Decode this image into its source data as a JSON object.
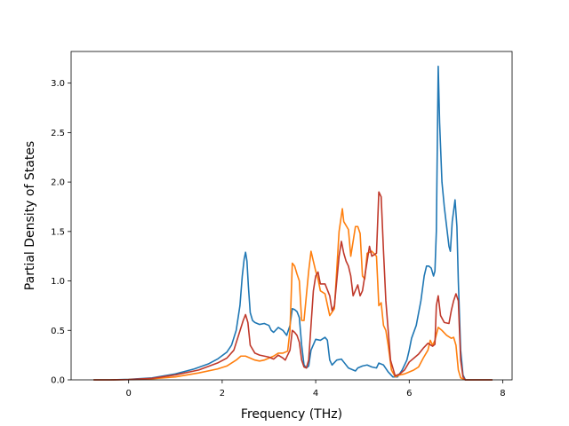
{
  "chart_data": {
    "type": "line",
    "title": "",
    "xlabel": "Frequency (THz)",
    "ylabel": "Partial Density of States",
    "xlim": [
      -1.23,
      8.2
    ],
    "ylim": [
      0,
      3.32
    ],
    "xticks": [
      0,
      2,
      4,
      6,
      8
    ],
    "yticks": [
      0.0,
      0.5,
      1.0,
      1.5,
      2.0,
      2.5,
      3.0
    ],
    "xtick_labels": [
      "0",
      "2",
      "4",
      "6",
      "8"
    ],
    "ytick_labels": [
      "0.0",
      "0.5",
      "1.0",
      "1.5",
      "2.0",
      "2.5",
      "3.0"
    ],
    "grid": false,
    "legend": "none",
    "series": [
      {
        "color": "#1f77b4",
        "points": [
          [
            -0.75,
            0
          ],
          [
            -0.4,
            0
          ],
          [
            0,
            0.005
          ],
          [
            0.5,
            0.02
          ],
          [
            1.0,
            0.06
          ],
          [
            1.4,
            0.11
          ],
          [
            1.7,
            0.16
          ],
          [
            1.9,
            0.21
          ],
          [
            2.1,
            0.28
          ],
          [
            2.2,
            0.35
          ],
          [
            2.3,
            0.5
          ],
          [
            2.38,
            0.75
          ],
          [
            2.43,
            1.05
          ],
          [
            2.47,
            1.22
          ],
          [
            2.5,
            1.29
          ],
          [
            2.53,
            1.2
          ],
          [
            2.56,
            0.95
          ],
          [
            2.6,
            0.68
          ],
          [
            2.65,
            0.6
          ],
          [
            2.7,
            0.58
          ],
          [
            2.8,
            0.56
          ],
          [
            2.9,
            0.57
          ],
          [
            3.0,
            0.55
          ],
          [
            3.05,
            0.5
          ],
          [
            3.1,
            0.48
          ],
          [
            3.2,
            0.53
          ],
          [
            3.3,
            0.5
          ],
          [
            3.38,
            0.45
          ],
          [
            3.45,
            0.55
          ],
          [
            3.5,
            0.72
          ],
          [
            3.55,
            0.71
          ],
          [
            3.6,
            0.69
          ],
          [
            3.65,
            0.63
          ],
          [
            3.7,
            0.35
          ],
          [
            3.75,
            0.15
          ],
          [
            3.8,
            0.12
          ],
          [
            3.85,
            0.14
          ],
          [
            3.9,
            0.3
          ],
          [
            4.0,
            0.41
          ],
          [
            4.1,
            0.4
          ],
          [
            4.2,
            0.43
          ],
          [
            4.25,
            0.4
          ],
          [
            4.3,
            0.2
          ],
          [
            4.35,
            0.15
          ],
          [
            4.45,
            0.2
          ],
          [
            4.55,
            0.21
          ],
          [
            4.6,
            0.18
          ],
          [
            4.7,
            0.12
          ],
          [
            4.8,
            0.1
          ],
          [
            4.85,
            0.09
          ],
          [
            4.9,
            0.12
          ],
          [
            5.0,
            0.14
          ],
          [
            5.1,
            0.15
          ],
          [
            5.2,
            0.13
          ],
          [
            5.3,
            0.12
          ],
          [
            5.35,
            0.17
          ],
          [
            5.45,
            0.15
          ],
          [
            5.55,
            0.08
          ],
          [
            5.65,
            0.03
          ],
          [
            5.75,
            0.03
          ],
          [
            5.85,
            0.1
          ],
          [
            5.95,
            0.2
          ],
          [
            6.0,
            0.3
          ],
          [
            6.05,
            0.42
          ],
          [
            6.15,
            0.55
          ],
          [
            6.25,
            0.8
          ],
          [
            6.32,
            1.05
          ],
          [
            6.37,
            1.15
          ],
          [
            6.42,
            1.15
          ],
          [
            6.47,
            1.13
          ],
          [
            6.52,
            1.05
          ],
          [
            6.55,
            1.1
          ],
          [
            6.58,
            1.5
          ],
          [
            6.62,
            3.17
          ],
          [
            6.65,
            2.6
          ],
          [
            6.7,
            2.0
          ],
          [
            6.75,
            1.75
          ],
          [
            6.8,
            1.55
          ],
          [
            6.85,
            1.35
          ],
          [
            6.88,
            1.3
          ],
          [
            6.92,
            1.6
          ],
          [
            6.98,
            1.82
          ],
          [
            7.02,
            1.55
          ],
          [
            7.05,
            1.0
          ],
          [
            7.1,
            0.3
          ],
          [
            7.15,
            0.05
          ],
          [
            7.2,
            0
          ],
          [
            7.5,
            0
          ],
          [
            7.78,
            0
          ]
        ]
      },
      {
        "color": "#ff7f0e",
        "points": [
          [
            -0.75,
            0
          ],
          [
            -0.4,
            0
          ],
          [
            0,
            0.003
          ],
          [
            0.5,
            0.01
          ],
          [
            1.0,
            0.03
          ],
          [
            1.5,
            0.07
          ],
          [
            1.9,
            0.11
          ],
          [
            2.1,
            0.14
          ],
          [
            2.3,
            0.2
          ],
          [
            2.4,
            0.24
          ],
          [
            2.5,
            0.24
          ],
          [
            2.6,
            0.22
          ],
          [
            2.7,
            0.2
          ],
          [
            2.8,
            0.19
          ],
          [
            2.9,
            0.2
          ],
          [
            3.0,
            0.22
          ],
          [
            3.1,
            0.24
          ],
          [
            3.2,
            0.27
          ],
          [
            3.3,
            0.27
          ],
          [
            3.4,
            0.29
          ],
          [
            3.45,
            0.5
          ],
          [
            3.5,
            1.18
          ],
          [
            3.55,
            1.15
          ],
          [
            3.6,
            1.07
          ],
          [
            3.65,
            1.0
          ],
          [
            3.7,
            0.6
          ],
          [
            3.75,
            0.6
          ],
          [
            3.85,
            1.1
          ],
          [
            3.9,
            1.3
          ],
          [
            3.95,
            1.2
          ],
          [
            4.0,
            1.1
          ],
          [
            4.05,
            1.02
          ],
          [
            4.1,
            0.9
          ],
          [
            4.2,
            0.87
          ],
          [
            4.3,
            0.65
          ],
          [
            4.4,
            0.72
          ],
          [
            4.5,
            1.5
          ],
          [
            4.57,
            1.73
          ],
          [
            4.6,
            1.6
          ],
          [
            4.7,
            1.52
          ],
          [
            4.75,
            1.25
          ],
          [
            4.85,
            1.55
          ],
          [
            4.9,
            1.55
          ],
          [
            4.95,
            1.48
          ],
          [
            5.0,
            1.05
          ],
          [
            5.05,
            1.02
          ],
          [
            5.1,
            1.28
          ],
          [
            5.2,
            1.3
          ],
          [
            5.3,
            1.25
          ],
          [
            5.35,
            0.75
          ],
          [
            5.4,
            0.78
          ],
          [
            5.45,
            0.55
          ],
          [
            5.5,
            0.5
          ],
          [
            5.55,
            0.35
          ],
          [
            5.62,
            0.1
          ],
          [
            5.7,
            0.03
          ],
          [
            5.8,
            0.05
          ],
          [
            5.9,
            0.06
          ],
          [
            6.0,
            0.08
          ],
          [
            6.1,
            0.1
          ],
          [
            6.2,
            0.13
          ],
          [
            6.3,
            0.22
          ],
          [
            6.4,
            0.3
          ],
          [
            6.45,
            0.4
          ],
          [
            6.5,
            0.35
          ],
          [
            6.55,
            0.4
          ],
          [
            6.62,
            0.53
          ],
          [
            6.7,
            0.5
          ],
          [
            6.8,
            0.45
          ],
          [
            6.9,
            0.42
          ],
          [
            6.95,
            0.43
          ],
          [
            7.0,
            0.35
          ],
          [
            7.05,
            0.1
          ],
          [
            7.1,
            0.02
          ],
          [
            7.2,
            0
          ],
          [
            7.78,
            0
          ]
        ]
      },
      {
        "color": "#c0392b",
        "points": [
          [
            -0.75,
            0
          ],
          [
            -0.4,
            0
          ],
          [
            0,
            0.003
          ],
          [
            0.5,
            0.015
          ],
          [
            1.0,
            0.05
          ],
          [
            1.5,
            0.1
          ],
          [
            1.9,
            0.17
          ],
          [
            2.1,
            0.22
          ],
          [
            2.25,
            0.3
          ],
          [
            2.35,
            0.45
          ],
          [
            2.45,
            0.6
          ],
          [
            2.5,
            0.66
          ],
          [
            2.55,
            0.58
          ],
          [
            2.6,
            0.35
          ],
          [
            2.7,
            0.27
          ],
          [
            2.8,
            0.25
          ],
          [
            2.9,
            0.24
          ],
          [
            3.0,
            0.23
          ],
          [
            3.1,
            0.21
          ],
          [
            3.2,
            0.25
          ],
          [
            3.3,
            0.22
          ],
          [
            3.35,
            0.2
          ],
          [
            3.45,
            0.3
          ],
          [
            3.5,
            0.5
          ],
          [
            3.55,
            0.48
          ],
          [
            3.6,
            0.45
          ],
          [
            3.65,
            0.38
          ],
          [
            3.7,
            0.2
          ],
          [
            3.75,
            0.13
          ],
          [
            3.8,
            0.12
          ],
          [
            3.85,
            0.2
          ],
          [
            3.95,
            0.9
          ],
          [
            4.0,
            1.05
          ],
          [
            4.05,
            1.09
          ],
          [
            4.1,
            0.97
          ],
          [
            4.2,
            0.97
          ],
          [
            4.3,
            0.85
          ],
          [
            4.35,
            0.7
          ],
          [
            4.4,
            0.75
          ],
          [
            4.5,
            1.25
          ],
          [
            4.55,
            1.4
          ],
          [
            4.6,
            1.28
          ],
          [
            4.65,
            1.2
          ],
          [
            4.7,
            1.15
          ],
          [
            4.75,
            1.05
          ],
          [
            4.8,
            0.85
          ],
          [
            4.9,
            0.96
          ],
          [
            4.95,
            0.85
          ],
          [
            5.0,
            0.9
          ],
          [
            5.1,
            1.2
          ],
          [
            5.15,
            1.35
          ],
          [
            5.2,
            1.25
          ],
          [
            5.3,
            1.28
          ],
          [
            5.35,
            1.9
          ],
          [
            5.4,
            1.85
          ],
          [
            5.45,
            1.3
          ],
          [
            5.5,
            0.8
          ],
          [
            5.55,
            0.5
          ],
          [
            5.6,
            0.2
          ],
          [
            5.7,
            0.04
          ],
          [
            5.8,
            0.06
          ],
          [
            5.9,
            0.1
          ],
          [
            6.0,
            0.18
          ],
          [
            6.1,
            0.22
          ],
          [
            6.2,
            0.26
          ],
          [
            6.3,
            0.32
          ],
          [
            6.4,
            0.37
          ],
          [
            6.5,
            0.34
          ],
          [
            6.55,
            0.36
          ],
          [
            6.58,
            0.75
          ],
          [
            6.62,
            0.85
          ],
          [
            6.67,
            0.65
          ],
          [
            6.75,
            0.58
          ],
          [
            6.85,
            0.57
          ],
          [
            6.9,
            0.7
          ],
          [
            6.95,
            0.8
          ],
          [
            7.0,
            0.87
          ],
          [
            7.05,
            0.8
          ],
          [
            7.1,
            0.2
          ],
          [
            7.15,
            0.03
          ],
          [
            7.2,
            0
          ],
          [
            7.78,
            0
          ]
        ]
      }
    ]
  }
}
